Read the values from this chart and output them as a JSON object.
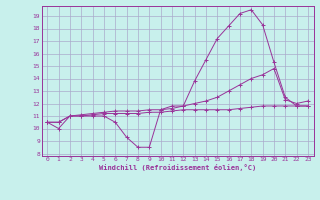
{
  "xlabel": "Windchill (Refroidissement éolien,°C)",
  "bg_color": "#c8f0ec",
  "grid_color": "#aaaacc",
  "line_color": "#993399",
  "xlim": [
    -0.5,
    23.5
  ],
  "ylim": [
    7.8,
    19.8
  ],
  "yticks": [
    8,
    9,
    10,
    11,
    12,
    13,
    14,
    15,
    16,
    17,
    18,
    19
  ],
  "xticks": [
    0,
    1,
    2,
    3,
    4,
    5,
    6,
    7,
    8,
    9,
    10,
    11,
    12,
    13,
    14,
    15,
    16,
    17,
    18,
    19,
    20,
    21,
    22,
    23
  ],
  "series": [
    {
      "x": [
        0,
        1,
        2,
        3,
        4,
        5,
        6,
        7,
        8,
        9,
        10,
        11,
        12,
        13,
        14,
        15,
        16,
        17,
        18,
        19,
        20,
        21,
        22,
        23
      ],
      "y": [
        10.5,
        10.0,
        11.0,
        11.0,
        11.0,
        11.0,
        10.5,
        9.3,
        8.5,
        8.5,
        11.5,
        11.8,
        11.8,
        13.8,
        15.5,
        17.2,
        18.2,
        19.2,
        19.5,
        18.3,
        15.3,
        12.5,
        11.8,
        11.8
      ]
    },
    {
      "x": [
        0,
        1,
        2,
        3,
        4,
        5,
        6,
        7,
        8,
        9,
        10,
        11,
        12,
        13,
        14,
        15,
        16,
        17,
        18,
        19,
        20,
        21,
        22,
        23
      ],
      "y": [
        10.5,
        10.5,
        11.0,
        11.1,
        11.2,
        11.3,
        11.4,
        11.4,
        11.4,
        11.5,
        11.5,
        11.6,
        11.8,
        12.0,
        12.2,
        12.5,
        13.0,
        13.5,
        14.0,
        14.3,
        14.8,
        12.3,
        12.0,
        12.2
      ]
    },
    {
      "x": [
        0,
        1,
        2,
        3,
        4,
        5,
        6,
        7,
        8,
        9,
        10,
        11,
        12,
        13,
        14,
        15,
        16,
        17,
        18,
        19,
        20,
        21,
        22,
        23
      ],
      "y": [
        10.5,
        10.5,
        11.0,
        11.0,
        11.1,
        11.2,
        11.2,
        11.2,
        11.2,
        11.3,
        11.3,
        11.4,
        11.5,
        11.5,
        11.5,
        11.5,
        11.5,
        11.6,
        11.7,
        11.8,
        11.8,
        11.8,
        11.8,
        11.8
      ]
    }
  ]
}
